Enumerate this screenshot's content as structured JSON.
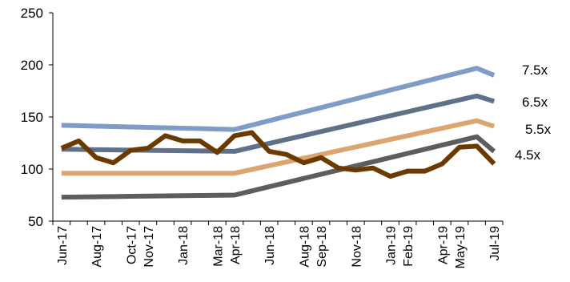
{
  "chart_data": {
    "type": "line",
    "title": "",
    "xlabel": "",
    "ylabel": "",
    "ylim": [
      50,
      250
    ],
    "yticks": [
      50,
      100,
      150,
      200,
      250
    ],
    "grid": false,
    "legend": "none",
    "x_tick_labels": [
      "Jun-17",
      "Aug-17",
      "Oct-17",
      "Nov-17",
      "Jan-18",
      "Mar-18",
      "Apr-18",
      "Jun-18",
      "Aug-18",
      "Sep-18",
      "Nov-18",
      "Jan-19",
      "Feb-19",
      "Apr-19",
      "May-19",
      "Jul-19"
    ],
    "x": [
      "Jun-17",
      "Jul-17",
      "Aug-17",
      "Sep-17",
      "Oct-17",
      "Nov-17",
      "Dec-17",
      "Jan-18",
      "Feb-18",
      "Mar-18",
      "Apr-18",
      "May-18",
      "Jun-18",
      "Jul-18",
      "Aug-18",
      "Sep-18",
      "Oct-18",
      "Nov-18",
      "Dec-18",
      "Jan-19",
      "Feb-19",
      "Mar-19",
      "Apr-19",
      "May-19",
      "Jun-19",
      "Jul-19"
    ],
    "series": [
      {
        "label": "7.5x",
        "color": "#7f9cc6",
        "values": [
          142,
          141.6,
          141.2,
          140.8,
          140.4,
          140,
          139.6,
          139.2,
          138.8,
          138.4,
          138,
          142.2,
          146.4,
          150.6,
          154.8,
          159,
          163.2,
          167.4,
          171.6,
          175.8,
          180,
          184.2,
          188.4,
          192.6,
          196.8,
          190
        ]
      },
      {
        "label": "6.5x",
        "color": "#5f7089",
        "values": [
          119,
          118.8,
          118.6,
          118.4,
          118.2,
          118,
          117.8,
          117.6,
          117.4,
          117.2,
          117,
          120.8,
          124.6,
          128.4,
          132.2,
          136,
          139.8,
          143.6,
          147.4,
          151.2,
          155,
          158.8,
          162.6,
          166.4,
          170.2,
          165
        ]
      },
      {
        "label": "5.5x",
        "color": "#dba56f",
        "values": [
          96,
          96,
          96,
          96,
          96,
          96,
          96,
          96,
          96,
          96,
          96,
          99.6,
          103.2,
          106.8,
          110.4,
          114,
          117.6,
          121.2,
          124.8,
          128.4,
          132,
          135.6,
          139.2,
          142.8,
          146.4,
          141
        ]
      },
      {
        "label": "4.5x",
        "color": "#5d5d5d",
        "values": [
          73,
          73.2,
          73.4,
          73.6,
          73.8,
          74,
          74.2,
          74.4,
          74.6,
          74.8,
          75,
          79,
          83,
          87,
          91,
          95,
          99,
          103,
          107,
          111,
          115,
          119,
          123,
          127,
          131,
          117
        ]
      },
      {
        "label": "",
        "color": "#6b3a00",
        "values": [
          120,
          127,
          111,
          106,
          118,
          120,
          132,
          127,
          127,
          116,
          132,
          135,
          117,
          114,
          106,
          111,
          101,
          99,
          101,
          93,
          98,
          98,
          105,
          121,
          122,
          105
        ]
      }
    ]
  }
}
